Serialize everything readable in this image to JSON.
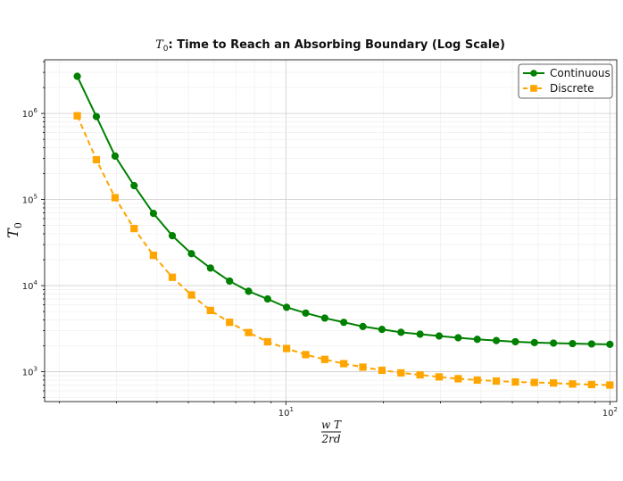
{
  "chart_data": {
    "type": "line",
    "title_symbol": "T",
    "title_sub": "0",
    "title_rest": ": Time to Reach an Absorbing Boundary (Log Scale)",
    "ylabel_symbol": "T",
    "ylabel_sub": "0",
    "xlabel_numerator": "w T",
    "xlabel_denominator": "2rd",
    "x_scale": "log",
    "y_scale": "log",
    "xlim": [
      1.8,
      105
    ],
    "ylim": [
      450,
      4200000
    ],
    "grid": true,
    "legend_position": "top-right",
    "x_ticks": [
      {
        "value": 10,
        "base": "10",
        "exp": "1"
      },
      {
        "value": 100,
        "base": "10",
        "exp": "2"
      }
    ],
    "y_ticks": [
      {
        "value": 1000,
        "base": "10",
        "exp": "3"
      },
      {
        "value": 10000,
        "base": "10",
        "exp": "4"
      },
      {
        "value": 100000,
        "base": "10",
        "exp": "5"
      },
      {
        "value": 1000000,
        "base": "10",
        "exp": "6"
      }
    ],
    "x": [
      2.27,
      2.6,
      2.97,
      3.4,
      3.9,
      4.46,
      5.11,
      5.85,
      6.7,
      7.67,
      8.78,
      10.05,
      11.51,
      13.18,
      15.09,
      17.28,
      19.79,
      22.66,
      25.95,
      29.71,
      34.02,
      38.96,
      44.61,
      51.08,
      58.49,
      66.97,
      76.69,
      87.81,
      100.0
    ],
    "series": [
      {
        "name": "Continuous",
        "color": "#008000",
        "marker": "circle",
        "line_style": "solid",
        "values": [
          2700000,
          920000,
          320000,
          145000,
          69000,
          38000,
          23500,
          16000,
          11300,
          8600,
          7000,
          5600,
          4800,
          4200,
          3750,
          3350,
          3100,
          2870,
          2730,
          2600,
          2480,
          2380,
          2300,
          2230,
          2180,
          2150,
          2120,
          2100,
          2080
        ]
      },
      {
        "name": "Discrete",
        "color": "#FFA500",
        "marker": "square",
        "line_style": "dashed",
        "values": [
          940000,
          290000,
          105000,
          46000,
          22500,
          12500,
          7800,
          5150,
          3750,
          2850,
          2230,
          1860,
          1580,
          1390,
          1240,
          1130,
          1040,
          970,
          920,
          870,
          830,
          800,
          780,
          760,
          750,
          740,
          720,
          710,
          700
        ]
      }
    ]
  }
}
